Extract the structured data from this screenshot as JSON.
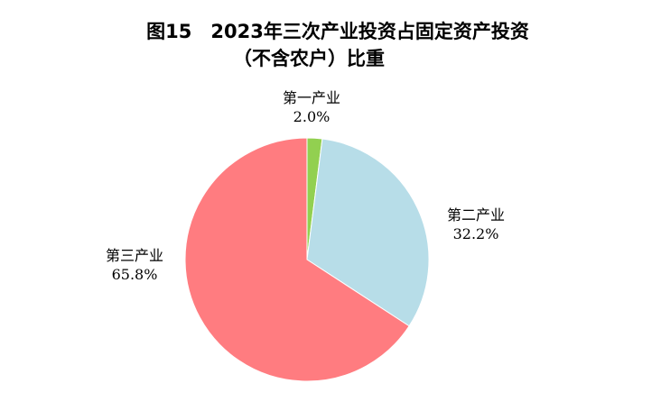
{
  "chart_data": {
    "type": "pie",
    "title": "图15　2023年三次产业投资占固定资产投资",
    "subtitle": "（不含农户）比重",
    "slices": [
      {
        "label": "第一产业",
        "value": 2.0,
        "value_label": "2.0%",
        "color": "#92d050"
      },
      {
        "label": "第二产业",
        "value": 32.2,
        "value_label": "32.2%",
        "color": "#b7dde8"
      },
      {
        "label": "第三产业",
        "value": 65.8,
        "value_label": "65.8%",
        "color": "#ff7c80"
      }
    ],
    "start_angle": "12 o'clock",
    "direction": "clockwise"
  }
}
